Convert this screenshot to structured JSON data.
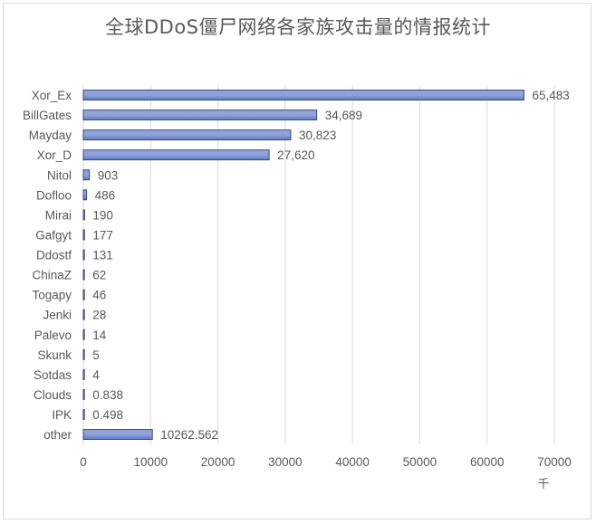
{
  "chart_data": {
    "type": "bar",
    "orientation": "horizontal",
    "title": "全球DDoS僵尸网络各家族攻击量的情报统计",
    "categories": [
      "Xor_Ex",
      "BillGates",
      "Mayday",
      "Xor_D",
      "Nitol",
      "Dofloo",
      "Mirai",
      "Gafgyt",
      "Ddostf",
      "ChinaZ",
      "Togapy",
      "Jenki",
      "Palevo",
      "Skunk",
      "Sotdas",
      "Clouds",
      "IPK",
      "other"
    ],
    "values": [
      65483,
      34689,
      30823,
      27620,
      903,
      486,
      190,
      177,
      131,
      62,
      46,
      28,
      14,
      5,
      4,
      0.838,
      0.498,
      10262.562
    ],
    "value_labels": [
      "65,483",
      "34,689",
      "30,823",
      "27,620",
      "903",
      "486",
      "190",
      "177",
      "131",
      "62",
      "46",
      "28",
      "14",
      "5",
      "4",
      "0.838",
      "0.498",
      "10262.562"
    ],
    "xlim": [
      0,
      70000
    ],
    "xticks": [
      0,
      10000,
      20000,
      30000,
      40000,
      50000,
      60000,
      70000
    ],
    "x_unit": "千",
    "grid": "vertical",
    "legend": "none",
    "bar_color": "#8fa3d9",
    "bar_gradient_end": "#5f79c2",
    "bar_border_color": "#2f3f6f",
    "grid_color": "#d9d9d9"
  }
}
